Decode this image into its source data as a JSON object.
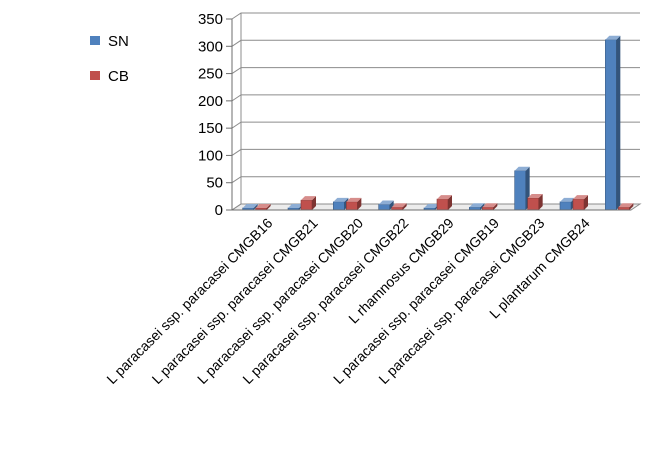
{
  "chart_data": {
    "type": "bar",
    "style": "3d-clustered-column",
    "categories": [
      "L paracasei ssp. paracasei CMGB16",
      "L paracasei ssp. paracasei CMGB21",
      "L paracasei ssp. paracasei CMGB20",
      "L paracasei ssp. paracasei CMGB22",
      "L rhamnosus CMGB29",
      "L paracasei ssp. paracasei CMGB19",
      "L paracasei ssp. paracasei CMGB23",
      "L plantarum CMGB24",
      ""
    ],
    "series": [
      {
        "name": "SN",
        "color": "#4F81BD",
        "values": [
          2,
          3,
          15,
          10,
          3,
          5,
          72,
          15,
          312
        ]
      },
      {
        "name": "CB",
        "color": "#C0504D",
        "values": [
          0,
          18,
          15,
          5,
          20,
          5,
          22,
          20,
          5
        ]
      }
    ],
    "y_ticks": [
      0,
      50,
      100,
      150,
      200,
      250,
      300,
      350
    ],
    "ylim": [
      0,
      350
    ],
    "grid": true,
    "legend_position": "top-left"
  }
}
